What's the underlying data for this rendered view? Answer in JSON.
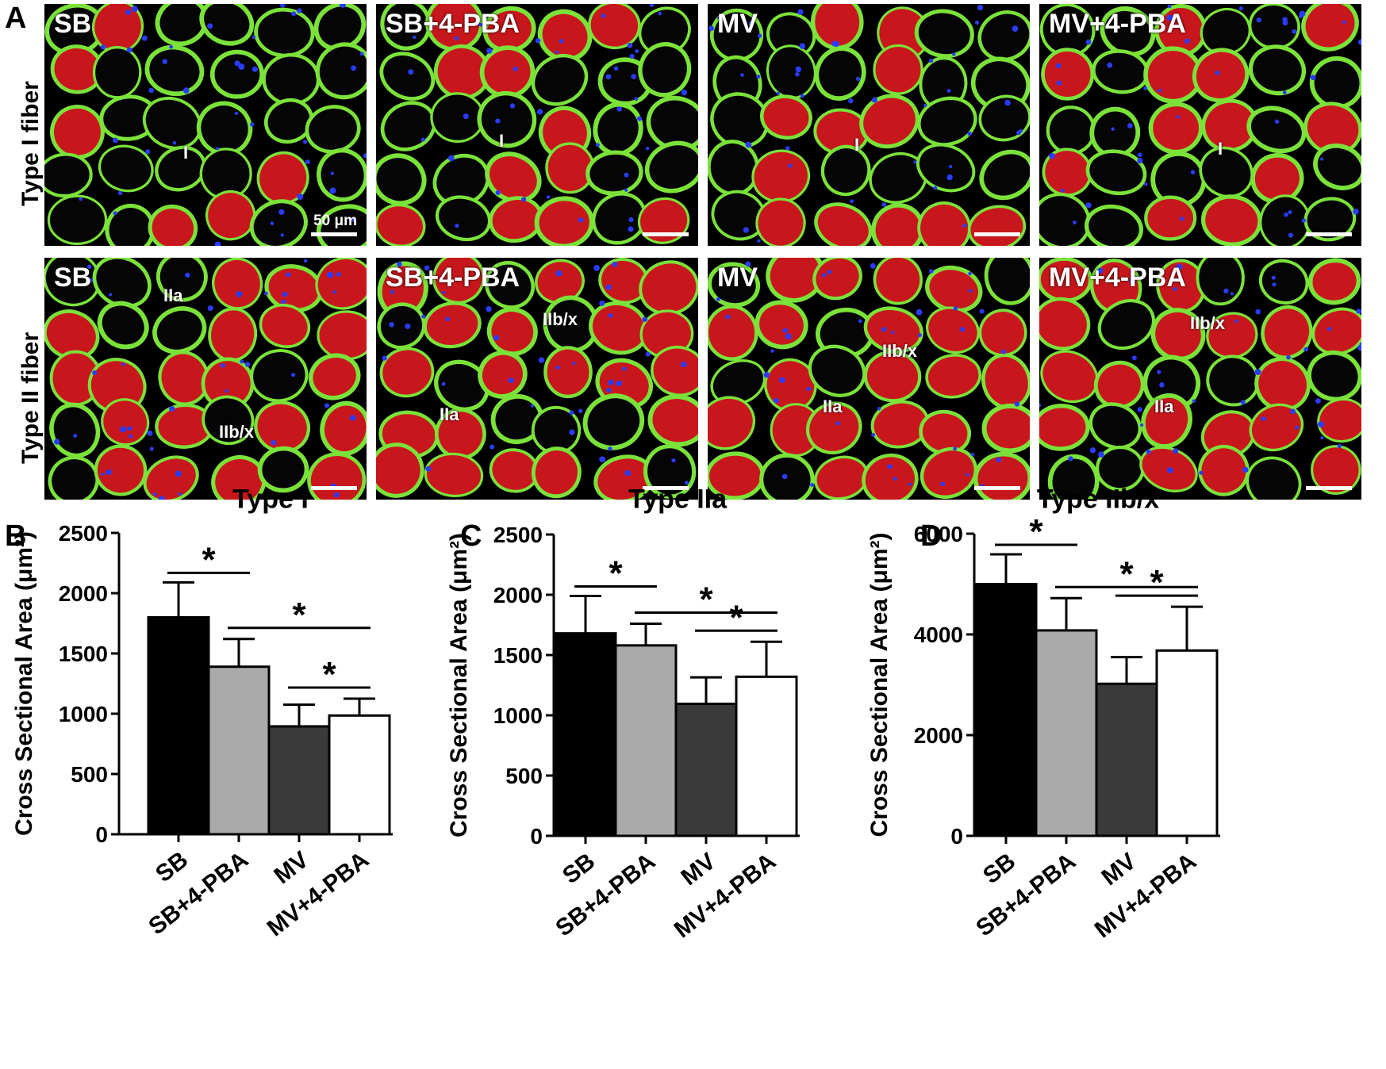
{
  "figure": {
    "panel_letters": [
      "A",
      "B",
      "C",
      "D"
    ],
    "row_labels": [
      "Type I fiber",
      "Type II fiber"
    ],
    "micrographs": [
      {
        "group": "SB",
        "fiber_labels": [
          "I"
        ],
        "scale_text": "50 μm"
      },
      {
        "group": "SB+4-PBA",
        "fiber_labels": [
          "I"
        ]
      },
      {
        "group": "MV",
        "fiber_labels": [
          "I"
        ]
      },
      {
        "group": "MV+4-PBA",
        "fiber_labels": [
          "I"
        ]
      },
      {
        "group": "SB",
        "fiber_labels": [
          "IIa",
          "IIb/x"
        ]
      },
      {
        "group": "SB+4-PBA",
        "fiber_labels": [
          "IIb/x",
          "IIa"
        ]
      },
      {
        "group": "MV",
        "fiber_labels": [
          "IIb/x",
          "IIa"
        ]
      },
      {
        "group": "MV+4-PBA",
        "fiber_labels": [
          "IIb/x",
          "IIa"
        ]
      }
    ],
    "colors": {
      "stain_red": "#c8171c",
      "stain_green": "#7be23a",
      "nuclei_blue": "#2a3cff"
    }
  },
  "chart_data": [
    {
      "type": "bar",
      "title": "Type I",
      "ylabel": "Cross Sectional Area (μm²)",
      "categories": [
        "SB",
        "SB+4-PBA",
        "MV",
        "MV+4-PBA"
      ],
      "values": [
        1800,
        1390,
        895,
        985
      ],
      "errors": [
        290,
        230,
        180,
        140
      ],
      "ylim": [
        0,
        2500
      ],
      "yticks": [
        "0",
        "500",
        "1000",
        "1500",
        "2000",
        "2500"
      ],
      "bar_colors": [
        "#000000",
        "#aaaaaa",
        "#3a3a3a",
        "#ffffff"
      ],
      "significance": [
        {
          "from": "SB",
          "to": "SB+4-PBA",
          "label": "*"
        },
        {
          "from": "SB+4-PBA",
          "to": "MV+4-PBA",
          "label": "*"
        },
        {
          "from": "MV",
          "to": "MV+4-PBA",
          "label": "*"
        }
      ]
    },
    {
      "type": "bar",
      "title": "Type IIa",
      "ylabel": "Cross Sectional Area (μm²)",
      "categories": [
        "SB",
        "SB+4-PBA",
        "MV",
        "MV+4-PBA"
      ],
      "values": [
        1680,
        1580,
        1095,
        1320
      ],
      "errors": [
        310,
        180,
        220,
        290
      ],
      "ylim": [
        0,
        2500
      ],
      "yticks": [
        "0",
        "500",
        "1000",
        "1500",
        "2000",
        "2500"
      ],
      "bar_colors": [
        "#000000",
        "#aaaaaa",
        "#3a3a3a",
        "#ffffff"
      ],
      "significance": [
        {
          "from": "SB",
          "to": "SB+4-PBA",
          "label": "*"
        },
        {
          "from": "SB+4-PBA",
          "to": "MV+4-PBA",
          "label": "*"
        },
        {
          "from": "MV",
          "to": "MV+4-PBA",
          "label": "*"
        }
      ]
    },
    {
      "type": "bar",
      "title": "Type IIb/x",
      "ylabel": "Cross Sectional Area (μm²)",
      "categories": [
        "SB",
        "SB+4-PBA",
        "MV",
        "MV+4-PBA"
      ],
      "values": [
        5000,
        4080,
        3020,
        3680
      ],
      "errors": [
        590,
        640,
        530,
        870
      ],
      "ylim": [
        0,
        6000
      ],
      "yticks": [
        "0",
        "2000",
        "4000",
        "6000"
      ],
      "bar_colors": [
        "#000000",
        "#aaaaaa",
        "#3a3a3a",
        "#ffffff"
      ],
      "significance": [
        {
          "from": "SB",
          "to": "SB+4-PBA",
          "label": "*"
        },
        {
          "from": "SB+4-PBA",
          "to": "MV+4-PBA",
          "label": "*"
        },
        {
          "from": "MV",
          "to": "MV+4-PBA",
          "label": "*"
        }
      ]
    }
  ]
}
